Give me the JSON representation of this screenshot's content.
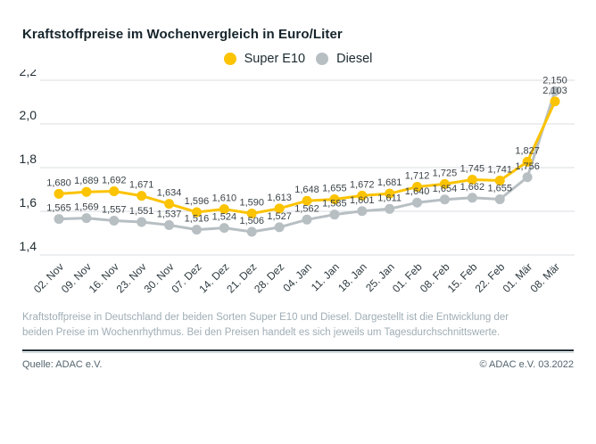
{
  "title": "Kraftstoffpreise im Wochenvergleich in Euro/Liter",
  "footnote": "Kraftstoffpreise in Deutschland der beiden Sorten Super E10 und Diesel. Dargestellt ist die Entwicklung der beiden Preise im Wochenrhythmus. Bei den Preisen handelt es sich jeweils um Tagesdurchschnittswerte.",
  "footer": {
    "source": "Quelle: ADAC e.V.",
    "copyright": "© ADAC e.V. 03.2022"
  },
  "colors": {
    "super_e10": "#FCC300",
    "diesel": "#B7BFC3",
    "grid": "#d9dde0",
    "label": "#3c4449"
  },
  "chart_data": {
    "type": "line",
    "title": "Kraftstoffpreise im Wochenvergleich in Euro/Liter",
    "xlabel": "",
    "ylabel": "Euro/Liter",
    "ylim": [
      1.4,
      2.2
    ],
    "yticks": [
      1.4,
      1.6,
      1.8,
      2.0,
      2.2
    ],
    "grid": true,
    "legend_position": "top",
    "categories": [
      "02. Nov",
      "09. Nov",
      "16. Nov",
      "23. Nov",
      "30. Nov",
      "07. Dez",
      "14. Dez",
      "21. Dez",
      "28. Dez",
      "04. Jan",
      "11. Jan",
      "18. Jan",
      "25. Jan",
      "01. Feb",
      "08. Feb",
      "15. Feb",
      "22. Feb",
      "01. Mär",
      "08. Mär"
    ],
    "series": [
      {
        "name": "Super E10",
        "color": "#FCC300",
        "values": [
          1.68,
          1.689,
          1.692,
          1.671,
          1.634,
          1.596,
          1.61,
          1.59,
          1.613,
          1.648,
          1.655,
          1.672,
          1.681,
          1.712,
          1.725,
          1.745,
          1.741,
          1.827,
          2.103
        ]
      },
      {
        "name": "Diesel",
        "color": "#B7BFC3",
        "values": [
          1.565,
          1.569,
          1.557,
          1.551,
          1.537,
          1.516,
          1.524,
          1.506,
          1.527,
          1.562,
          1.585,
          1.601,
          1.611,
          1.64,
          1.654,
          1.662,
          1.655,
          1.756,
          2.15
        ]
      }
    ]
  }
}
